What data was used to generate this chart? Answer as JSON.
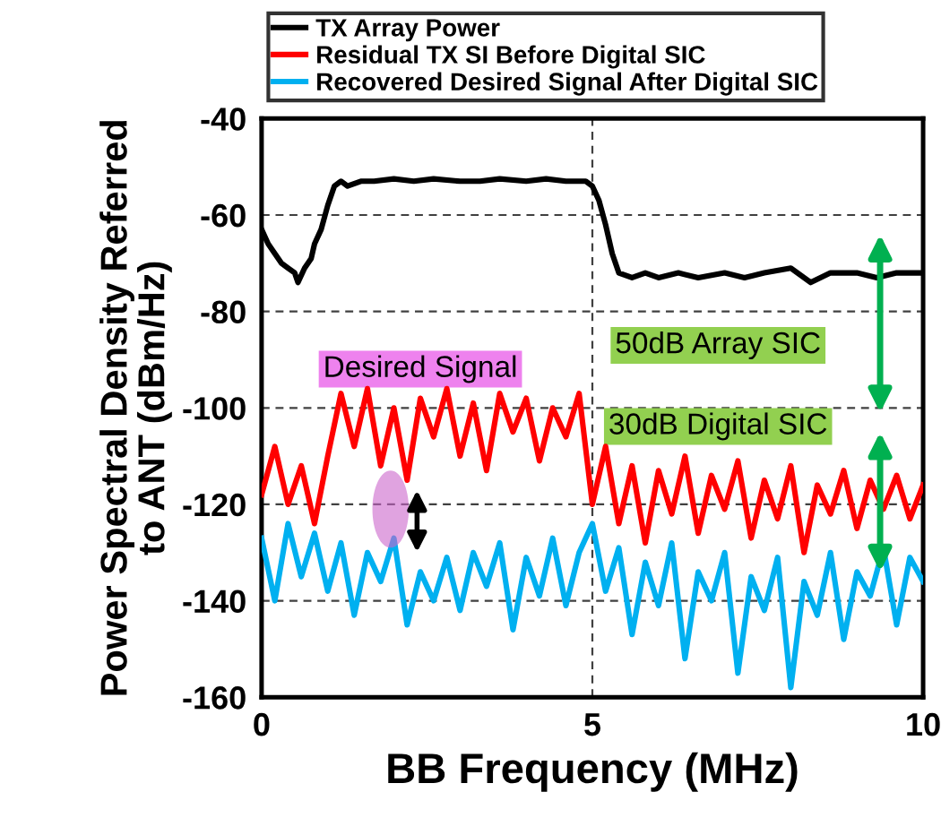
{
  "chart_data": {
    "type": "line",
    "xlabel": "BB Frequency (MHz)",
    "ylabel": "Power Spectral Density Referred\nto ANT (dBm/Hz)",
    "xlim": [
      0,
      10
    ],
    "xticks": [
      0,
      5,
      10
    ],
    "ylim": [
      -160,
      -40
    ],
    "yticks": [
      -160,
      -140,
      -120,
      -100,
      -80,
      -60,
      -40
    ],
    "grid": true,
    "legend": "top",
    "line_style": "solid",
    "marker": "none",
    "series": [
      {
        "name": "TX Array Power",
        "color": "#000000",
        "x": [
          0,
          0.1,
          0.2,
          0.3,
          0.4,
          0.5,
          0.55,
          0.65,
          0.75,
          0.8,
          0.9,
          1.0,
          1.1,
          1.2,
          1.3,
          1.5,
          1.7,
          2.0,
          2.3,
          2.6,
          3.0,
          3.3,
          3.6,
          4.0,
          4.3,
          4.6,
          4.9,
          5.0,
          5.1,
          5.2,
          5.3,
          5.4,
          5.6,
          5.8,
          6.0,
          6.3,
          6.6,
          7.0,
          7.3,
          7.6,
          8.0,
          8.3,
          8.6,
          9.0,
          9.3,
          9.6,
          10.0
        ],
        "values": [
          -63,
          -66,
          -68,
          -70,
          -71,
          -72,
          -74,
          -71,
          -69,
          -66,
          -63,
          -58,
          -54,
          -53,
          -54,
          -53,
          -53,
          -52.5,
          -53,
          -52.5,
          -53,
          -53,
          -52.5,
          -53,
          -52.5,
          -53,
          -53,
          -54,
          -57,
          -62,
          -68,
          -72,
          -73,
          -72,
          -73,
          -72,
          -73,
          -72,
          -73,
          -72,
          -71,
          -74,
          -72,
          -72,
          -73,
          -72,
          -72
        ]
      },
      {
        "name": "Residual TX SI Before Digital SIC",
        "color": "#ff0000",
        "x": [
          0,
          0.2,
          0.4,
          0.6,
          0.8,
          1.0,
          1.2,
          1.4,
          1.6,
          1.8,
          2.0,
          2.2,
          2.4,
          2.6,
          2.8,
          3.0,
          3.2,
          3.4,
          3.6,
          3.8,
          4.0,
          4.2,
          4.4,
          4.6,
          4.8,
          5.0,
          5.2,
          5.4,
          5.6,
          5.8,
          6.0,
          6.2,
          6.4,
          6.6,
          6.8,
          7.0,
          7.2,
          7.4,
          7.6,
          7.8,
          8.0,
          8.2,
          8.4,
          8.6,
          8.8,
          9.0,
          9.2,
          9.4,
          9.6,
          9.8,
          10.0
        ],
        "values": [
          -118,
          -108,
          -120,
          -112,
          -124,
          -110,
          -97,
          -108,
          -96,
          -112,
          -100,
          -115,
          -98,
          -106,
          -96,
          -110,
          -99,
          -113,
          -97,
          -105,
          -98,
          -111,
          -100,
          -106,
          -97,
          -120,
          -108,
          -124,
          -112,
          -128,
          -113,
          -122,
          -110,
          -126,
          -114,
          -121,
          -111,
          -127,
          -115,
          -123,
          -112,
          -130,
          -116,
          -122,
          -113,
          -125,
          -115,
          -121,
          -114,
          -123,
          -116
        ]
      },
      {
        "name": "Recovered Desired Signal After Digital SIC",
        "color": "#00b0f0",
        "x": [
          0,
          0.2,
          0.4,
          0.6,
          0.8,
          1.0,
          1.2,
          1.4,
          1.6,
          1.8,
          2.0,
          2.2,
          2.4,
          2.6,
          2.8,
          3.0,
          3.2,
          3.4,
          3.6,
          3.8,
          4.0,
          4.2,
          4.4,
          4.6,
          4.8,
          5.0,
          5.2,
          5.4,
          5.6,
          5.8,
          6.0,
          6.2,
          6.4,
          6.6,
          6.8,
          7.0,
          7.2,
          7.4,
          7.6,
          7.8,
          8.0,
          8.2,
          8.4,
          8.6,
          8.8,
          9.0,
          9.2,
          9.4,
          9.6,
          9.8,
          10.0
        ],
        "values": [
          -127,
          -140,
          -124,
          -135,
          -126,
          -138,
          -128,
          -143,
          -130,
          -136,
          -127,
          -145,
          -134,
          -140,
          -131,
          -142,
          -130,
          -137,
          -128,
          -146,
          -131,
          -139,
          -127,
          -141,
          -130,
          -124,
          -138,
          -129,
          -147,
          -132,
          -141,
          -128,
          -152,
          -134,
          -140,
          -130,
          -155,
          -135,
          -142,
          -131,
          -158,
          -136,
          -143,
          -130,
          -148,
          -134,
          -139,
          -129,
          -145,
          -131,
          -136
        ]
      }
    ],
    "annotations": [
      "Desired Signal",
      "50dB Array SIC",
      "30dB Digital SIC"
    ]
  }
}
